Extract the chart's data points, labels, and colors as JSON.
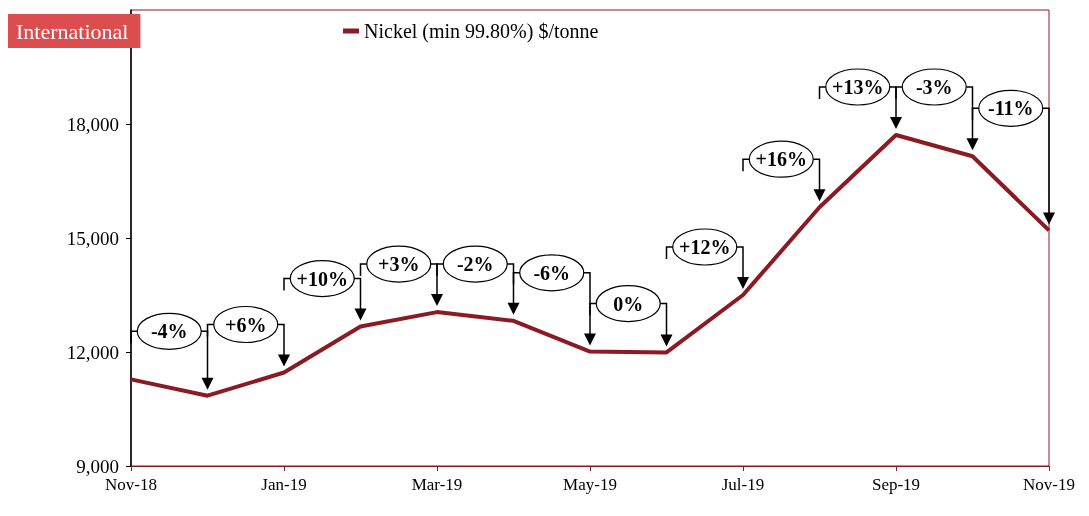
{
  "chart_data": {
    "type": "line",
    "title": "International",
    "categories": [
      "Nov-18",
      null,
      "Jan-19",
      null,
      "Mar-19",
      null,
      "May-19",
      null,
      "Jul-19",
      null,
      "Sep-19",
      null,
      "Nov-19"
    ],
    "series": [
      {
        "name": "Nickel (min 99.80%) $/tonne",
        "color": "#8b1a22",
        "values": [
          11280,
          10850,
          11460,
          12670,
          13050,
          12820,
          12010,
          11990,
          13500,
          15810,
          17710,
          17150,
          15200
        ]
      }
    ],
    "ylim": [
      9000,
      21000
    ],
    "yticks": [
      {
        "value": 9000,
        "label": "9,000"
      },
      {
        "value": 12000,
        "label": "12,000"
      },
      {
        "value": 15000,
        "label": "15,000"
      },
      {
        "value": 18000,
        "label": "18,000"
      }
    ],
    "annotations": [
      "-4%",
      "+6%",
      "+10%",
      "+3%",
      "-2%",
      "-6%",
      "0%",
      "+12%",
      "+16%",
      "+13%",
      "-3%",
      "-11%"
    ],
    "grid": false,
    "legend": "top",
    "marker": "none",
    "line_style": "solid"
  }
}
